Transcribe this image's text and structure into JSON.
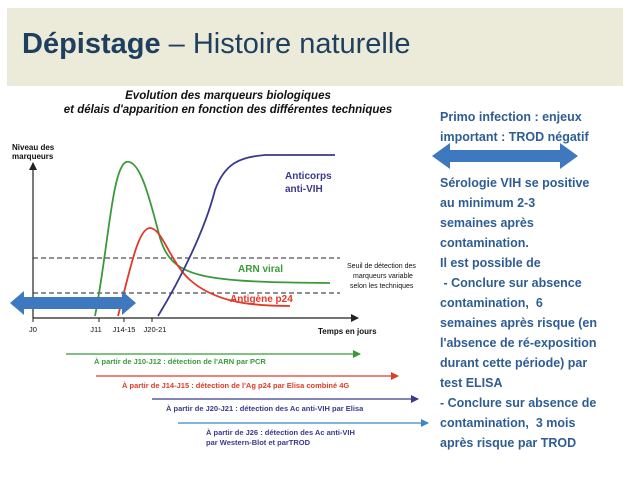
{
  "slide": {
    "title_bold": "Dépistage",
    "title_rest": " – Histoire naturelle"
  },
  "diagram": {
    "subtitle_line1": "Evolution des marqueurs biologiques",
    "subtitle_line2": "et délais d'apparition en fonction des différentes techniques",
    "y_label_line1": "Niveau des",
    "y_label_line2": "marqueurs",
    "x_label": "Temps en jours",
    "x_ticks": [
      "J0",
      "J11",
      "J14-15",
      "J20-21"
    ],
    "curves": {
      "anticorps_line1": "Anticorps",
      "anticorps_line2": "anti-VIH",
      "arn": "ARN viral",
      "antigene": "Antigène p24"
    },
    "threshold_note": [
      "Seuil de détection des",
      "marqueurs variable",
      "selon les techniques"
    ],
    "detection_arrows": [
      {
        "label": "À partir de J10-J12 : détection de l'ARN par PCR",
        "color": "#3a9a3a"
      },
      {
        "label": "À partir de J14-J15 : détection de l'Ag p24 par Elisa combiné 4G",
        "color": "#e03a2a"
      },
      {
        "label": "À partir de J20-J21 : détection des Ac anti-VIH par Elisa",
        "color": "#3a3a8c"
      },
      {
        "label_line1": "À partir de J26 : détection des Ac anti-VIH",
        "label_line2": "par Western-Blot et parTROD",
        "color": "#3a86c8"
      }
    ],
    "colors": {
      "arn": "#3a9a3a",
      "antigene": "#e03a2a",
      "anticorps": "#3a3a8c",
      "trod": "#3a86c8",
      "window_arrow": "#3e78bf"
    }
  },
  "right_panel": {
    "primo_line1": "Primo infection : enjeux",
    "primo_line2": "important : TROD négatif",
    "lines": [
      "Sérologie VIH se positive",
      "au minimum 2-3",
      "semaines après",
      "contamination.",
      "Il est possible de",
      " - Conclure sur absence",
      "contamination,  6",
      "semaines après risque (en",
      "l'absence de ré-exposition",
      "durant cette période) par",
      "test ELISA",
      "- Conclure sur absence de",
      "contamination,  3 mois",
      "après risque par TROD"
    ]
  }
}
